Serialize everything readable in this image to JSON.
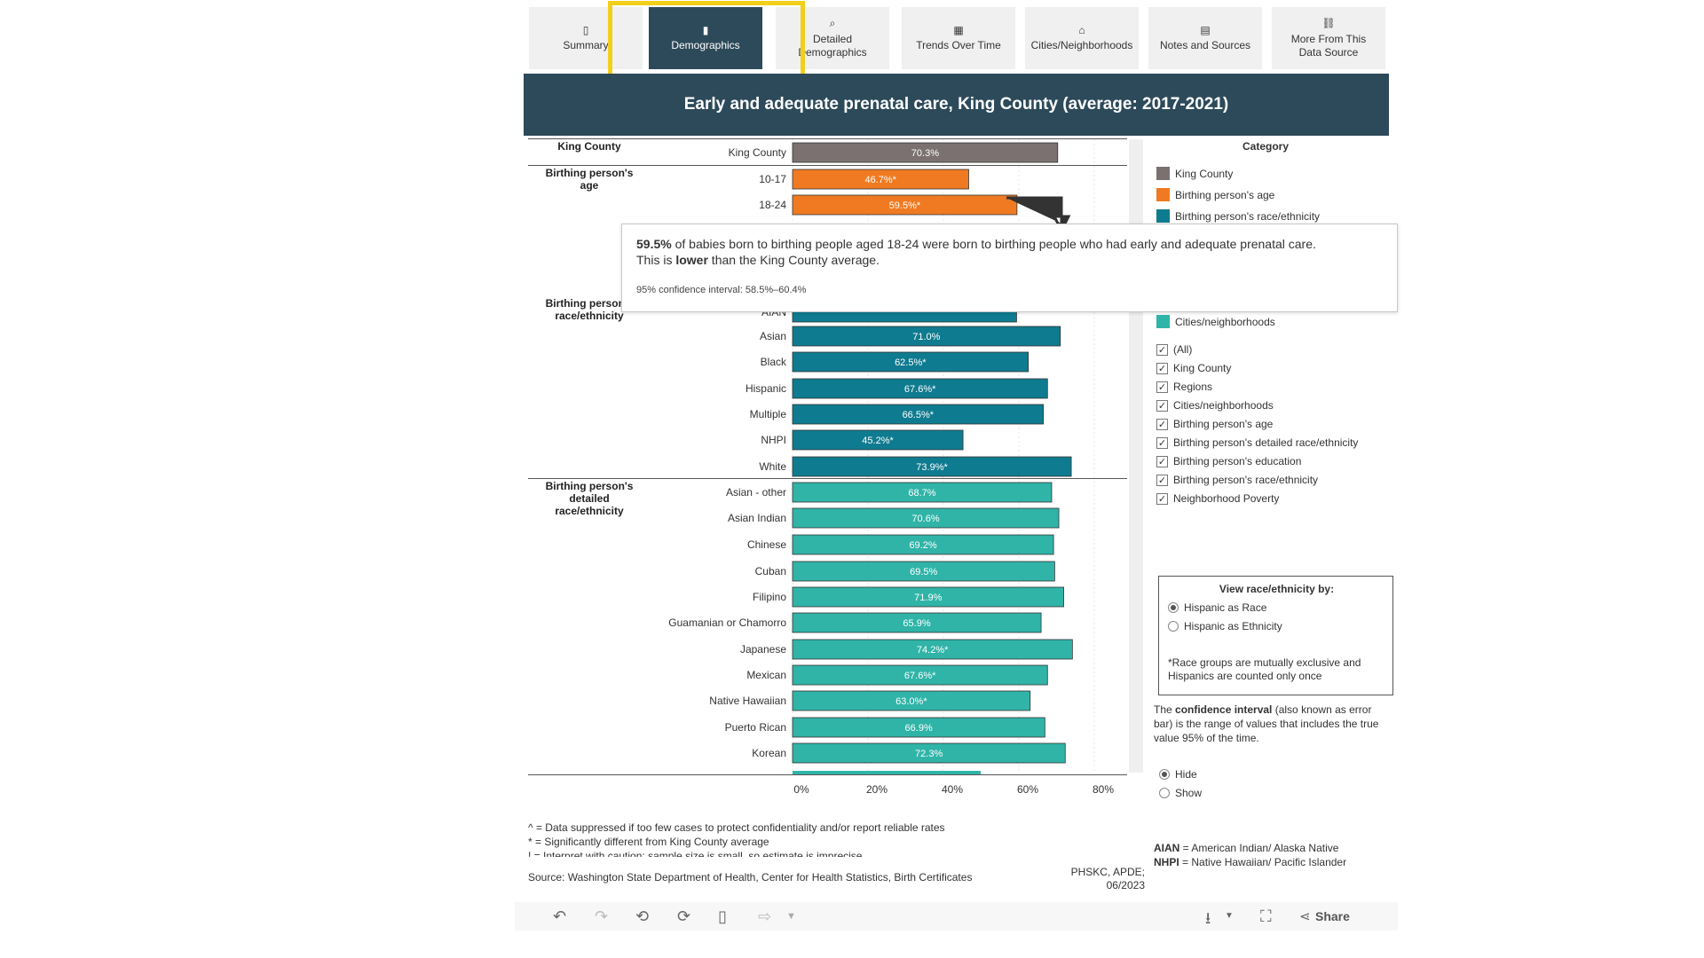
{
  "tabs": [
    {
      "label": "Summary",
      "icon": "doc-icon",
      "glyph": "▯",
      "left": 596
    },
    {
      "label": "Demographics",
      "icon": "bar-chart-icon",
      "glyph": "▮",
      "left": 731,
      "active": true
    },
    {
      "label": "Detailed\nDemographics",
      "icon": "magnifier-icon",
      "glyph": "⌕",
      "left": 874
    },
    {
      "label": "Trends Over Time",
      "icon": "calendar-icon",
      "glyph": "▦",
      "left": 1016
    },
    {
      "label": "Cities/Neighborhoods",
      "icon": "house-icon",
      "glyph": "⌂",
      "left": 1155
    },
    {
      "label": "Notes and Sources",
      "icon": "notebook-icon",
      "glyph": "▤",
      "left": 1294
    },
    {
      "label": "More From This\nData Source",
      "icon": "link-icon",
      "glyph": "⛓",
      "left": 1433
    }
  ],
  "title": "Early and adequate prenatal care, King County (average: 2017-2021)",
  "groups": {
    "king_county": "King County",
    "age": "Birthing person's\nage",
    "race": "Birthing person's\nrace/ethnicity",
    "detailed_race": "Birthing person's\ndetailed\nrace/ethnicity"
  },
  "chart_data": {
    "type": "bar",
    "orientation": "horizontal",
    "categories": [
      "King County",
      "10-17",
      "18-24",
      "AIAN",
      "Asian",
      "Black",
      "Hispanic",
      "Multiple",
      "NHPI",
      "White",
      "Asian - other",
      "Asian Indian",
      "Chinese",
      "Cuban",
      "Filipino",
      "Guamanian or Chamorro",
      "Japanese",
      "Mexican",
      "Native Hawaiian",
      "Puerto Rican",
      "Korean"
    ],
    "values": [
      70.3,
      46.7,
      59.5,
      59.4,
      71.0,
      62.5,
      67.6,
      66.5,
      45.2,
      73.9,
      68.7,
      70.6,
      69.2,
      69.5,
      71.9,
      65.9,
      74.2,
      67.6,
      63.0,
      66.9,
      72.3
    ],
    "value_labels": [
      "70.3%",
      "46.7%*",
      "59.5%*",
      "",
      "71.0%",
      "62.5%*",
      "67.6%*",
      "66.5%*",
      "45.2%*",
      "73.9%*",
      "68.7%",
      "70.6%",
      "69.2%",
      "69.5%",
      "71.9%",
      "65.9%",
      "74.2%*",
      "67.6%*",
      "63.0%*",
      "66.9%",
      "72.3%"
    ],
    "groups": [
      "King County",
      "Birthing person's age",
      "Birthing person's age",
      "Birthing person's race/ethnicity",
      "Birthing person's race/ethnicity",
      "Birthing person's race/ethnicity",
      "Birthing person's race/ethnicity",
      "Birthing person's race/ethnicity",
      "Birthing person's race/ethnicity",
      "Birthing person's race/ethnicity",
      "Cities/neighborhoods",
      "Cities/neighborhoods",
      "Cities/neighborhoods",
      "Cities/neighborhoods",
      "Cities/neighborhoods",
      "Cities/neighborhoods",
      "Cities/neighborhoods",
      "Cities/neighborhoods",
      "Cities/neighborhoods",
      "Cities/neighborhoods",
      "Cities/neighborhoods"
    ],
    "x_ticks": [
      "0%",
      "20%",
      "40%",
      "60%",
      "80%"
    ],
    "xlim": [
      0,
      87
    ],
    "colors": {
      "King County": "#7a7170",
      "Birthing person's age": "#f07a21",
      "Birthing person's race/ethnicity": "#0f7b90",
      "Cities/neighborhoods": "#30b4a8"
    },
    "legend_position": "right"
  },
  "legend": {
    "title": "Category",
    "items": [
      {
        "label": "King County",
        "color": "#7a7170"
      },
      {
        "label": "Birthing person's age",
        "color": "#f07a21"
      },
      {
        "label": "Birthing person's race/ethnicity",
        "color": "#0f7b90"
      },
      {
        "label": "Cities/neighborhoods",
        "color": "#30b4a8"
      }
    ]
  },
  "filters": [
    "(All)",
    "King County",
    "Regions",
    "Cities/neighborhoods",
    "Birthing person's age",
    "Birthing person's detailed race/ethnicity",
    "Birthing person's education",
    "Birthing person's race/ethnicity",
    "Neighborhood Poverty"
  ],
  "race_view": {
    "title": "View race/ethnicity by:",
    "options": [
      "Hispanic as Race",
      "Hispanic as Ethnicity"
    ],
    "selected": "Hispanic as Race",
    "note": "*Race groups are mutually exclusive and Hispanics are counted only once"
  },
  "ci_note": {
    "pre": "The ",
    "bold": "confidence interval",
    "post": " (also known as error bar) is the range of values that includes the true value 95% of the time."
  },
  "ci_toggle": {
    "options": [
      "Hide",
      "Show"
    ],
    "selected": "Hide"
  },
  "abbreviations": [
    {
      "abbr": "AIAN",
      "text": " = American Indian/ Alaska Native"
    },
    {
      "abbr": "NHPI",
      "text": " = Native Hawaiian/ Pacific Islander"
    }
  ],
  "tooltip": {
    "value": "59.5%",
    "text1": " of babies born to birthing people aged 18-24 were born to birthing people who had early and adequate prenatal care.",
    "text2_pre": "This is ",
    "text2_bold": "lower",
    "text2_post": " than the King County average.",
    "ci": "95% confidence interval: 58.5%–60.4%"
  },
  "footnotes": [
    "^ = Data suppressed if too few cases to protect confidentiality and/or report reliable rates",
    "* = Significantly different from King County average",
    "! = Interpret with caution; sample size is small, so estimate is imprecise"
  ],
  "source": "Source: Washington State Department of Health, Center for Health Statistics, Birth Certificates",
  "credit": "PHSKC, APDE;\n06/2023",
  "toolbar": {
    "share_label": "Share"
  }
}
